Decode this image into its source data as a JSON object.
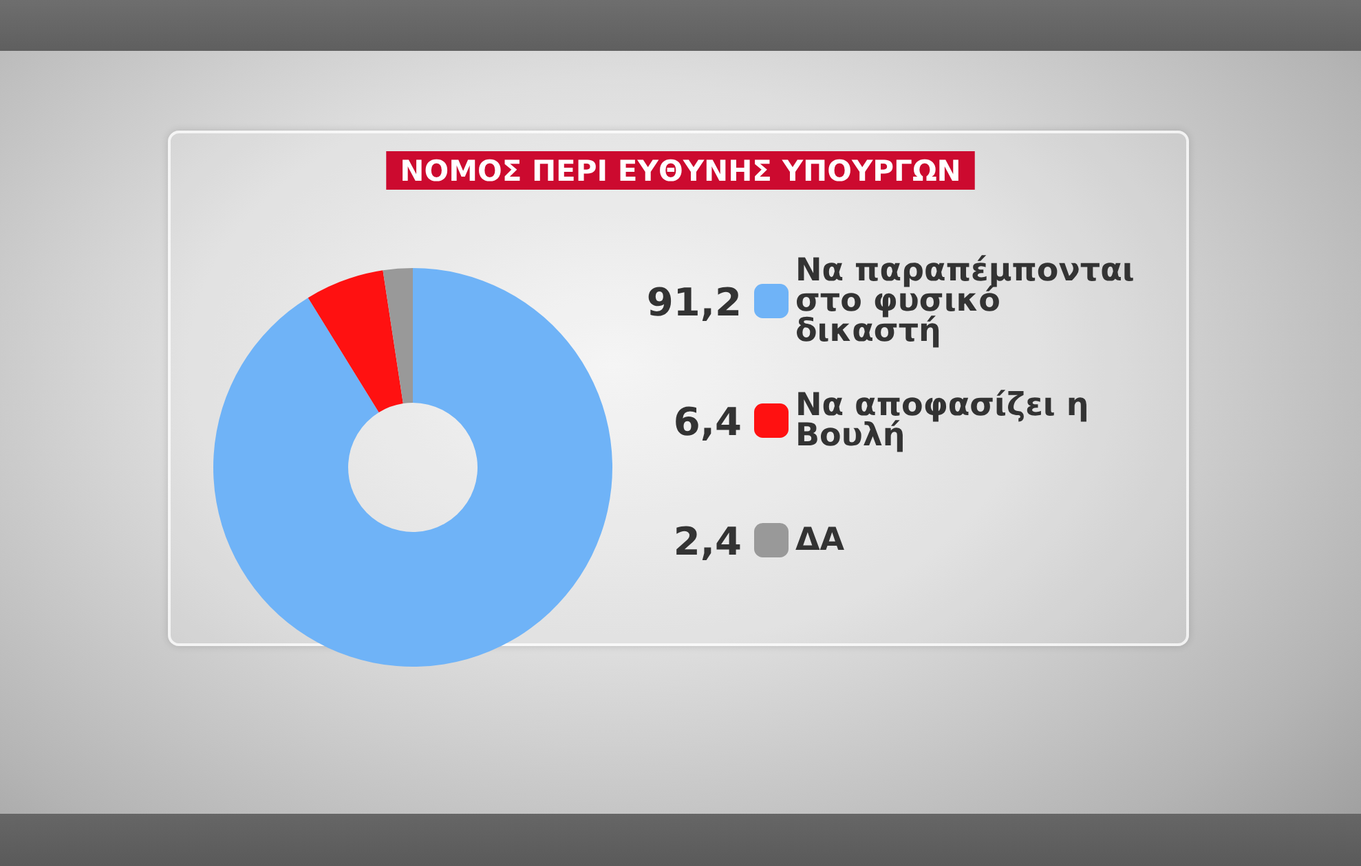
{
  "chart_data": {
    "type": "donut",
    "title": "ΝΟΜΟΣ ΠΕΡΙ ΕΥΘΥΝΗΣ ΥΠΟΥΡΓΩΝ",
    "categories": [
      "Να παραπέμπονται στο φυσικό δικαστή",
      "Να αποφασίζει η Βουλή",
      "ΔΑ"
    ],
    "values": [
      91.2,
      6.4,
      2.4
    ],
    "value_labels": [
      "91,2",
      "6,4",
      "2,4"
    ],
    "colors": [
      "#6fb3f7",
      "#ff1111",
      "#999999"
    ],
    "legend": "right"
  }
}
